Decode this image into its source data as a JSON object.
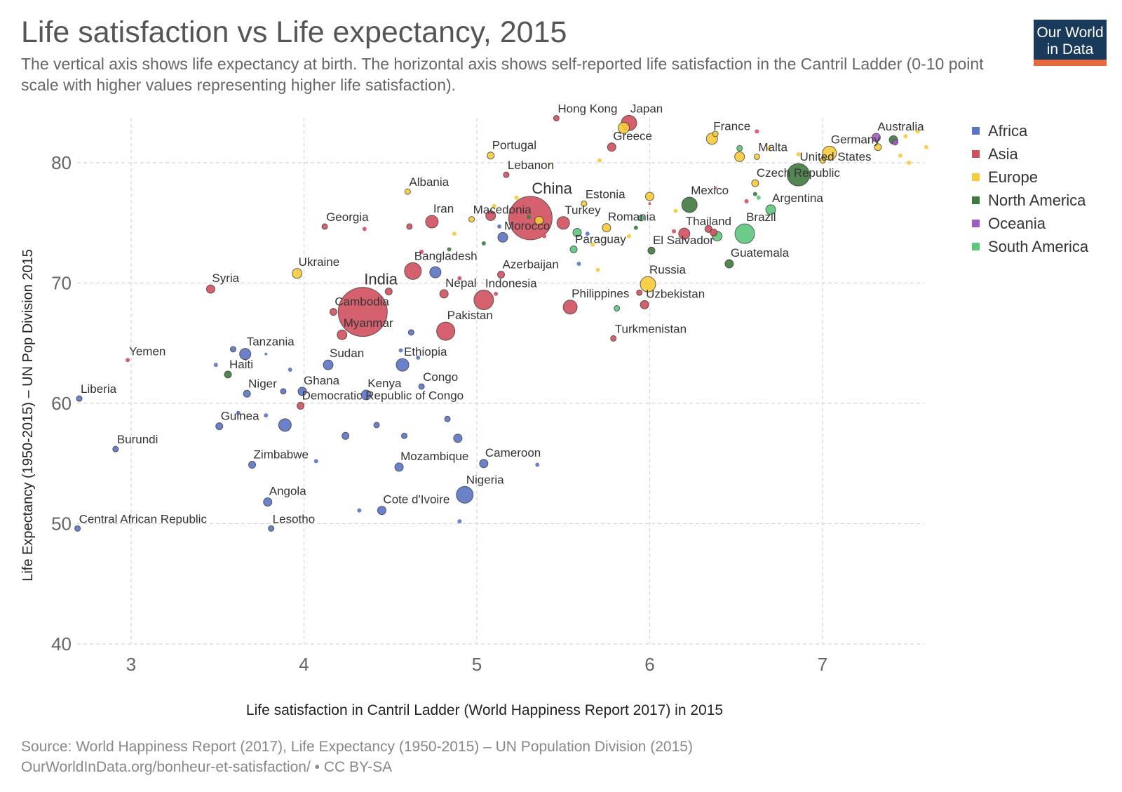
{
  "title": "Life satisfaction vs Life expectancy, 2015",
  "subtitle": "The vertical axis shows life expectancy at birth. The horizontal axis shows self-reported life satisfaction in the Cantril Ladder (0-10 point scale with higher values representing higher life satisfaction).",
  "logo": {
    "line1": "Our World",
    "line2": "in Data",
    "bg": "#1a3a5c",
    "accent": "#e56a3d"
  },
  "source_line1": "Source: World Happiness Report (2017), Life Expectancy (1950-2015) – UN Population Division (2015)",
  "source_line2": "OurWorldInData.org/bonheur-et-satisfaction/ • CC BY-SA",
  "colors": {
    "Africa": "#5b74c4",
    "Asia": "#d0505e",
    "Europe": "#f7cb3b",
    "North America": "#3f7a3f",
    "Oceania": "#a35bc4",
    "South America": "#5ec77e"
  },
  "legend": [
    "Africa",
    "Asia",
    "Europe",
    "North America",
    "Oceania",
    "South America"
  ],
  "chart_data": {
    "type": "scatter",
    "xlabel": "Life satisfaction in Cantril Ladder (World Happiness Report 2017) in 2015",
    "ylabel": "Life Expectancy (1950-2015) – UN Pop Division 2015",
    "xlim": [
      2.7,
      7.6
    ],
    "ylim": [
      40,
      84
    ],
    "xticks": [
      3,
      4,
      5,
      6,
      7
    ],
    "yticks": [
      40,
      50,
      60,
      70,
      80
    ],
    "grid": true,
    "legend_position": "right",
    "points": [
      {
        "label": "China",
        "continent": "Asia",
        "x": 5.31,
        "y": 75.4,
        "r": 31,
        "big": true
      },
      {
        "label": "India",
        "continent": "Asia",
        "x": 4.34,
        "y": 67.6,
        "r": 35,
        "big": true
      },
      {
        "label": "Hong Kong",
        "continent": "Asia",
        "x": 5.46,
        "y": 83.7,
        "r": 4
      },
      {
        "label": "Japan",
        "continent": "Asia",
        "x": 5.88,
        "y": 83.3,
        "r": 11
      },
      {
        "label": "Greece",
        "continent": "Asia",
        "x": 5.78,
        "y": 81.3,
        "r": 6
      },
      {
        "label": "Lebanon",
        "continent": "Asia",
        "x": 5.17,
        "y": 79.0,
        "r": 4
      },
      {
        "label": "Iran",
        "continent": "Asia",
        "x": 4.74,
        "y": 75.1,
        "r": 9
      },
      {
        "label": "Georgia",
        "continent": "Asia",
        "x": 4.12,
        "y": 74.7,
        "r": 4
      },
      {
        "label": "Turkey",
        "continent": "Asia",
        "x": 5.5,
        "y": 75.0,
        "r": 9
      },
      {
        "label": "Thailand",
        "continent": "Asia",
        "x": 6.2,
        "y": 74.1,
        "r": 8
      },
      {
        "label": "Bangladesh",
        "continent": "Asia",
        "x": 4.63,
        "y": 71.0,
        "r": 12
      },
      {
        "label": "Azerbaijan",
        "continent": "Asia",
        "x": 5.14,
        "y": 70.7,
        "r": 5
      },
      {
        "label": "Syria",
        "continent": "Asia",
        "x": 3.46,
        "y": 69.5,
        "r": 6
      },
      {
        "label": "Nepal",
        "continent": "Asia",
        "x": 4.81,
        "y": 69.1,
        "r": 6
      },
      {
        "label": "Indonesia",
        "continent": "Asia",
        "x": 5.04,
        "y": 68.6,
        "r": 14
      },
      {
        "label": "Philippines",
        "continent": "Asia",
        "x": 5.54,
        "y": 68.0,
        "r": 10
      },
      {
        "label": "Uzbekistan",
        "continent": "Asia",
        "x": 5.97,
        "y": 68.2,
        "r": 6
      },
      {
        "label": "Cambodia",
        "continent": "Asia",
        "x": 4.17,
        "y": 67.6,
        "r": 5
      },
      {
        "label": "Pakistan",
        "continent": "Asia",
        "x": 4.82,
        "y": 66.0,
        "r": 13
      },
      {
        "label": "Myanmar",
        "continent": "Asia",
        "x": 4.22,
        "y": 65.7,
        "r": 7
      },
      {
        "label": "Turkmenistan",
        "continent": "Asia",
        "x": 5.79,
        "y": 65.4,
        "r": 4
      },
      {
        "label": "Yemen",
        "continent": "Asia",
        "x": 2.98,
        "y": 63.6,
        "r": 3
      },
      {
        "label": "",
        "continent": "Asia",
        "x": 4.49,
        "y": 69.3,
        "r": 5
      },
      {
        "label": "",
        "continent": "Asia",
        "x": 5.08,
        "y": 75.6,
        "r": 7
      },
      {
        "label": "",
        "continent": "Asia",
        "x": 4.61,
        "y": 74.7,
        "r": 4
      },
      {
        "label": "",
        "continent": "Asia",
        "x": 4.35,
        "y": 74.5,
        "r": 3
      },
      {
        "label": "",
        "continent": "Asia",
        "x": 5.39,
        "y": 73.9,
        "r": 3
      },
      {
        "label": "",
        "continent": "Asia",
        "x": 6.34,
        "y": 74.5,
        "r": 5
      },
      {
        "label": "",
        "continent": "Asia",
        "x": 6.37,
        "y": 74.2,
        "r": 5
      },
      {
        "label": "",
        "continent": "Asia",
        "x": 5.94,
        "y": 69.2,
        "r": 4
      },
      {
        "label": "",
        "continent": "Asia",
        "x": 5.11,
        "y": 69.1,
        "r": 3
      },
      {
        "label": "",
        "continent": "Asia",
        "x": 4.68,
        "y": 72.6,
        "r": 3
      },
      {
        "label": "",
        "continent": "Asia",
        "x": 4.9,
        "y": 70.4,
        "r": 3
      },
      {
        "label": "",
        "continent": "Asia",
        "x": 6.62,
        "y": 82.6,
        "r": 3
      },
      {
        "label": "",
        "continent": "Asia",
        "x": 6.56,
        "y": 76.8,
        "r": 3
      },
      {
        "label": "",
        "continent": "Asia",
        "x": 6.38,
        "y": 77.9,
        "r": 2
      },
      {
        "label": "",
        "continent": "Asia",
        "x": 6.0,
        "y": 76.6,
        "r": 2
      },
      {
        "label": "",
        "continent": "Asia",
        "x": 6.14,
        "y": 74.3,
        "r": 3
      },
      {
        "label": "Democratic Republic of Congo",
        "continent": "Asia",
        "x": 3.98,
        "y": 59.8,
        "r": 5
      },
      {
        "label": "Ukraine",
        "continent": "Europe",
        "x": 3.96,
        "y": 70.8,
        "r": 7
      },
      {
        "label": "Albania",
        "continent": "Europe",
        "x": 4.6,
        "y": 77.6,
        "r": 4
      },
      {
        "label": "Portugal",
        "continent": "Europe",
        "x": 5.08,
        "y": 80.6,
        "r": 5
      },
      {
        "label": "Macedonia",
        "continent": "Europe",
        "x": 4.97,
        "y": 75.3,
        "r": 4
      },
      {
        "label": "Estonia",
        "continent": "Europe",
        "x": 5.62,
        "y": 76.6,
        "r": 4
      },
      {
        "label": "Romania",
        "continent": "Europe",
        "x": 5.75,
        "y": 74.6,
        "r": 6
      },
      {
        "label": "Russia",
        "continent": "Europe",
        "x": 5.99,
        "y": 69.9,
        "r": 11
      },
      {
        "label": "France",
        "continent": "Europe",
        "x": 6.36,
        "y": 82.0,
        "r": 8
      },
      {
        "label": "Malta",
        "continent": "Europe",
        "x": 6.62,
        "y": 80.5,
        "r": 4
      },
      {
        "label": "Czech Republic",
        "continent": "Europe",
        "x": 6.61,
        "y": 78.3,
        "r": 5
      },
      {
        "label": "Germany",
        "continent": "Europe",
        "x": 7.04,
        "y": 80.8,
        "r": 10
      },
      {
        "label": "Australia",
        "continent": "Oceania",
        "x": 7.31,
        "y": 82.1,
        "r": 6
      },
      {
        "label": "",
        "continent": "Europe",
        "x": 5.85,
        "y": 82.9,
        "r": 8
      },
      {
        "label": "",
        "continent": "Europe",
        "x": 5.36,
        "y": 75.2,
        "r": 6
      },
      {
        "label": "",
        "continent": "Europe",
        "x": 6.0,
        "y": 77.2,
        "r": 6
      },
      {
        "label": "",
        "continent": "Europe",
        "x": 6.52,
        "y": 80.5,
        "r": 7
      },
      {
        "label": "",
        "continent": "Europe",
        "x": 6.38,
        "y": 82.4,
        "r": 4
      },
      {
        "label": "",
        "continent": "Europe",
        "x": 7.0,
        "y": 80.2,
        "r": 4
      },
      {
        "label": "",
        "continent": "Europe",
        "x": 7.32,
        "y": 81.3,
        "r": 5
      },
      {
        "label": "",
        "continent": "Europe",
        "x": 7.55,
        "y": 82.6,
        "r": 3
      },
      {
        "label": "",
        "continent": "Europe",
        "x": 7.6,
        "y": 81.3,
        "r": 3
      },
      {
        "label": "",
        "continent": "Europe",
        "x": 7.45,
        "y": 80.6,
        "r": 3
      },
      {
        "label": "",
        "continent": "Europe",
        "x": 7.5,
        "y": 80.0,
        "r": 3
      },
      {
        "label": "",
        "continent": "Europe",
        "x": 7.48,
        "y": 82.2,
        "r": 3
      },
      {
        "label": "",
        "continent": "Europe",
        "x": 6.86,
        "y": 80.7,
        "r": 3
      },
      {
        "label": "",
        "continent": "Europe",
        "x": 6.69,
        "y": 81.2,
        "r": 3
      },
      {
        "label": "",
        "continent": "Europe",
        "x": 5.71,
        "y": 80.2,
        "r": 3
      },
      {
        "label": "",
        "continent": "Europe",
        "x": 5.42,
        "y": 79.9,
        "r": 2
      },
      {
        "label": "",
        "continent": "Europe",
        "x": 5.1,
        "y": 76.4,
        "r": 3
      },
      {
        "label": "",
        "continent": "Europe",
        "x": 5.23,
        "y": 77.1,
        "r": 3
      },
      {
        "label": "",
        "continent": "Europe",
        "x": 4.87,
        "y": 74.1,
        "r": 3
      },
      {
        "label": "",
        "continent": "Europe",
        "x": 5.7,
        "y": 71.1,
        "r": 3
      },
      {
        "label": "",
        "continent": "Europe",
        "x": 5.88,
        "y": 73.9,
        "r": 3
      },
      {
        "label": "",
        "continent": "Europe",
        "x": 6.15,
        "y": 76.0,
        "r": 3
      },
      {
        "label": "",
        "continent": "Europe",
        "x": 5.67,
        "y": 73.2,
        "r": 3
      },
      {
        "label": "United States",
        "continent": "North America",
        "x": 6.86,
        "y": 79.0,
        "r": 16
      },
      {
        "label": "Mexico",
        "continent": "North America",
        "x": 6.23,
        "y": 76.5,
        "r": 11
      },
      {
        "label": "Guatemala",
        "continent": "North America",
        "x": 6.46,
        "y": 71.6,
        "r": 6
      },
      {
        "label": "El Salvador",
        "continent": "North America",
        "x": 6.01,
        "y": 72.7,
        "r": 5
      },
      {
        "label": "Haiti",
        "continent": "North America",
        "x": 3.56,
        "y": 62.4,
        "r": 5
      },
      {
        "label": "",
        "continent": "North America",
        "x": 7.41,
        "y": 81.9,
        "r": 6
      },
      {
        "label": "",
        "continent": "North America",
        "x": 6.61,
        "y": 77.4,
        "r": 3
      },
      {
        "label": "",
        "continent": "North America",
        "x": 5.92,
        "y": 74.6,
        "r": 3
      },
      {
        "label": "",
        "continent": "North America",
        "x": 5.04,
        "y": 73.3,
        "r": 3
      },
      {
        "label": "",
        "continent": "North America",
        "x": 4.84,
        "y": 72.8,
        "r": 3
      },
      {
        "label": "",
        "continent": "North America",
        "x": 5.3,
        "y": 75.5,
        "r": 3
      },
      {
        "label": "",
        "continent": "Oceania",
        "x": 7.42,
        "y": 81.7,
        "r": 4
      },
      {
        "label": "Argentina",
        "continent": "South America",
        "x": 6.7,
        "y": 76.1,
        "r": 7
      },
      {
        "label": "Brazil",
        "continent": "South America",
        "x": 6.55,
        "y": 74.1,
        "r": 14
      },
      {
        "label": "Paraguay",
        "continent": "South America",
        "x": 5.56,
        "y": 72.8,
        "r": 5
      },
      {
        "label": "",
        "continent": "South America",
        "x": 5.58,
        "y": 74.2,
        "r": 6
      },
      {
        "label": "",
        "continent": "South America",
        "x": 6.39,
        "y": 73.9,
        "r": 7
      },
      {
        "label": "",
        "continent": "South America",
        "x": 6.52,
        "y": 81.2,
        "r": 4
      },
      {
        "label": "",
        "continent": "South America",
        "x": 6.63,
        "y": 77.1,
        "r": 3
      },
      {
        "label": "",
        "continent": "South America",
        "x": 5.95,
        "y": 75.4,
        "r": 4
      },
      {
        "label": "",
        "continent": "South America",
        "x": 5.81,
        "y": 67.9,
        "r": 4
      },
      {
        "label": "Morocco",
        "continent": "Africa",
        "x": 5.15,
        "y": 73.8,
        "r": 7
      },
      {
        "label": "Tanzania",
        "continent": "Africa",
        "x": 3.66,
        "y": 64.1,
        "r": 8
      },
      {
        "label": "Sudan",
        "continent": "Africa",
        "x": 4.14,
        "y": 63.2,
        "r": 7
      },
      {
        "label": "Ethiopia",
        "continent": "Africa",
        "x": 4.57,
        "y": 63.2,
        "r": 9
      },
      {
        "label": "Congo",
        "continent": "Africa",
        "x": 4.68,
        "y": 61.4,
        "r": 4
      },
      {
        "label": "Niger",
        "continent": "Africa",
        "x": 3.67,
        "y": 60.8,
        "r": 5
      },
      {
        "label": "Ghana",
        "continent": "Africa",
        "x": 3.99,
        "y": 61.0,
        "r": 6
      },
      {
        "label": "Kenya",
        "continent": "Africa",
        "x": 4.36,
        "y": 60.7,
        "r": 7
      },
      {
        "label": "Liberia",
        "continent": "Africa",
        "x": 2.7,
        "y": 60.4,
        "r": 4
      },
      {
        "label": "Guinea",
        "continent": "Africa",
        "x": 3.51,
        "y": 58.1,
        "r": 5
      },
      {
        "label": "",
        "continent": "Africa",
        "x": 3.89,
        "y": 58.2,
        "r": 9
      },
      {
        "label": "Burundi",
        "continent": "Africa",
        "x": 2.91,
        "y": 56.2,
        "r": 4
      },
      {
        "label": "Zimbabwe",
        "continent": "Africa",
        "x": 3.7,
        "y": 54.9,
        "r": 5
      },
      {
        "label": "Mozambique",
        "continent": "Africa",
        "x": 4.55,
        "y": 54.7,
        "r": 6
      },
      {
        "label": "Cameroon",
        "continent": "Africa",
        "x": 5.04,
        "y": 55.0,
        "r": 6
      },
      {
        "label": "Nigeria",
        "continent": "Africa",
        "x": 4.93,
        "y": 52.4,
        "r": 12
      },
      {
        "label": "Angola",
        "continent": "Africa",
        "x": 3.79,
        "y": 51.8,
        "r": 6
      },
      {
        "label": "Cote d'Ivoire",
        "continent": "Africa",
        "x": 4.45,
        "y": 51.1,
        "r": 6
      },
      {
        "label": "Central African Republic",
        "continent": "Africa",
        "x": 2.69,
        "y": 49.6,
        "r": 4
      },
      {
        "label": "Lesotho",
        "continent": "Africa",
        "x": 3.81,
        "y": 49.6,
        "r": 4
      },
      {
        "label": "",
        "continent": "Africa",
        "x": 4.76,
        "y": 70.9,
        "r": 8
      },
      {
        "label": "",
        "continent": "Africa",
        "x": 4.62,
        "y": 65.9,
        "r": 4
      },
      {
        "label": "",
        "continent": "Africa",
        "x": 3.59,
        "y": 64.5,
        "r": 4
      },
      {
        "label": "",
        "continent": "Africa",
        "x": 3.49,
        "y": 63.2,
        "r": 3
      },
      {
        "label": "",
        "continent": "Africa",
        "x": 3.92,
        "y": 62.8,
        "r": 3
      },
      {
        "label": "",
        "continent": "Africa",
        "x": 3.78,
        "y": 64.1,
        "r": 2
      },
      {
        "label": "",
        "continent": "Africa",
        "x": 4.56,
        "y": 64.4,
        "r": 3
      },
      {
        "label": "",
        "continent": "Africa",
        "x": 4.66,
        "y": 63.8,
        "r": 3
      },
      {
        "label": "",
        "continent": "Africa",
        "x": 3.88,
        "y": 61.0,
        "r": 4
      },
      {
        "label": "",
        "continent": "Africa",
        "x": 3.62,
        "y": 59.2,
        "r": 3
      },
      {
        "label": "",
        "continent": "Africa",
        "x": 3.78,
        "y": 59.0,
        "r": 3
      },
      {
        "label": "",
        "continent": "Africa",
        "x": 4.24,
        "y": 57.3,
        "r": 5
      },
      {
        "label": "",
        "continent": "Africa",
        "x": 4.42,
        "y": 58.2,
        "r": 4
      },
      {
        "label": "",
        "continent": "Africa",
        "x": 4.58,
        "y": 57.3,
        "r": 4
      },
      {
        "label": "",
        "continent": "Africa",
        "x": 4.83,
        "y": 58.7,
        "r": 4
      },
      {
        "label": "",
        "continent": "Africa",
        "x": 4.89,
        "y": 57.1,
        "r": 6
      },
      {
        "label": "",
        "continent": "Africa",
        "x": 4.07,
        "y": 55.2,
        "r": 3
      },
      {
        "label": "",
        "continent": "Africa",
        "x": 5.35,
        "y": 54.9,
        "r": 3
      },
      {
        "label": "",
        "continent": "Africa",
        "x": 4.32,
        "y": 51.1,
        "r": 3
      },
      {
        "label": "",
        "continent": "Africa",
        "x": 4.9,
        "y": 50.2,
        "r": 3
      },
      {
        "label": "",
        "continent": "Africa",
        "x": 5.13,
        "y": 74.7,
        "r": 3
      },
      {
        "label": "",
        "continent": "Africa",
        "x": 5.59,
        "y": 71.6,
        "r": 3
      },
      {
        "label": "",
        "continent": "Africa",
        "x": 5.64,
        "y": 74.1,
        "r": 3
      }
    ]
  }
}
